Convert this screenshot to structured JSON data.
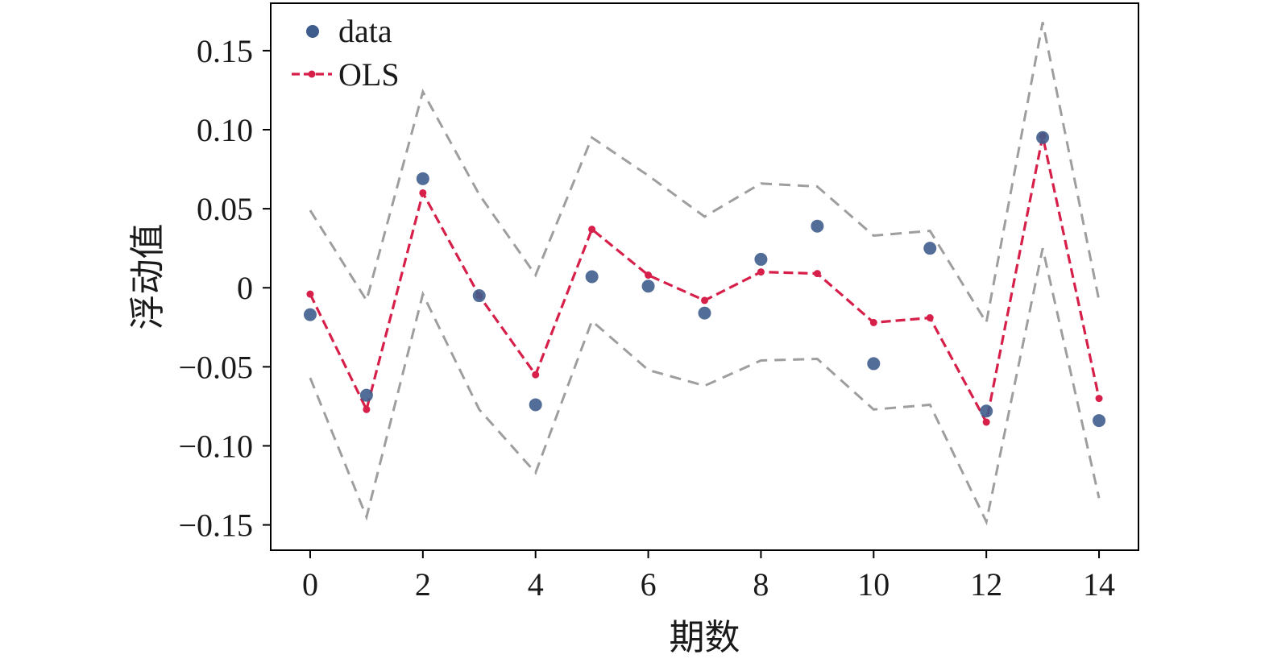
{
  "chart_data": {
    "type": "scatter",
    "xlabel": "期数",
    "ylabel": "浮动值",
    "xlim": [
      -0.7,
      14.7
    ],
    "ylim": [
      -0.166,
      0.18
    ],
    "x_ticks": [
      0,
      2,
      4,
      6,
      8,
      10,
      12,
      14
    ],
    "x_tick_labels": [
      "0",
      "2",
      "4",
      "6",
      "8",
      "10",
      "12",
      "14"
    ],
    "y_ticks": [
      -0.15,
      -0.1,
      -0.05,
      0,
      0.05,
      0.1,
      0.15
    ],
    "y_tick_labels": [
      "−0.15",
      "−0.10",
      "−0.05",
      "0",
      "0.05",
      "0.10",
      "0.15"
    ],
    "grid": false,
    "legend_position": "top-left",
    "x": [
      0,
      1,
      2,
      3,
      4,
      5,
      6,
      7,
      8,
      9,
      10,
      11,
      12,
      13,
      14
    ],
    "series": [
      {
        "name": "data",
        "kind": "scatter",
        "color": "#3f5d8c",
        "values": [
          -0.017,
          -0.068,
          0.069,
          -0.005,
          -0.074,
          0.007,
          0.001,
          -0.016,
          0.018,
          0.039,
          -0.048,
          0.025,
          -0.078,
          0.095,
          -0.084
        ]
      },
      {
        "name": "OLS",
        "kind": "line",
        "style": "dashed-with-markers",
        "color": "#d6204a",
        "values": [
          -0.004,
          -0.077,
          0.06,
          -0.005,
          -0.055,
          0.037,
          0.008,
          -0.008,
          0.01,
          0.009,
          -0.022,
          -0.019,
          -0.085,
          0.096,
          -0.07
        ]
      },
      {
        "kind": "band-upper",
        "style": "dashed",
        "color": "#9e9e9e",
        "values": [
          0.049,
          -0.008,
          0.124,
          0.059,
          0.008,
          0.095,
          0.071,
          0.045,
          0.066,
          0.064,
          0.033,
          0.036,
          -0.022,
          0.168,
          -0.008
        ]
      },
      {
        "kind": "band-lower",
        "style": "dashed",
        "color": "#9e9e9e",
        "values": [
          -0.057,
          -0.145,
          -0.004,
          -0.077,
          -0.117,
          -0.021,
          -0.052,
          -0.062,
          -0.046,
          -0.045,
          -0.077,
          -0.074,
          -0.148,
          0.025,
          -0.133
        ]
      }
    ]
  }
}
